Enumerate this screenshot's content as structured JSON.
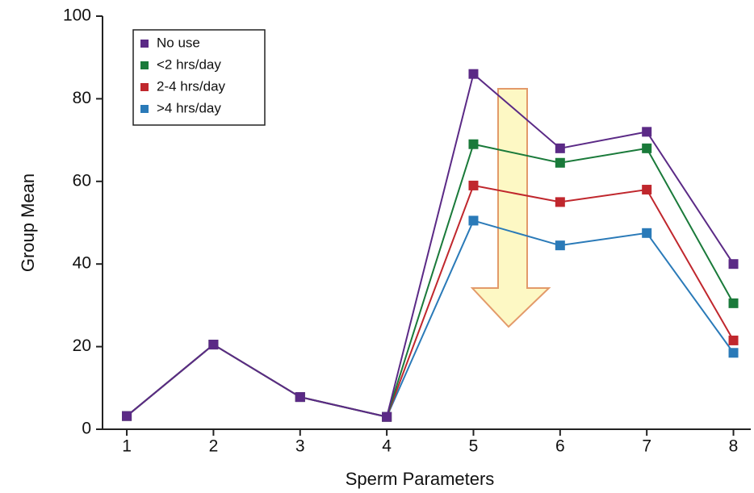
{
  "chart_data": {
    "type": "line",
    "x_label": "Sperm Parameters",
    "y_label": "Group Mean",
    "x": [
      1,
      2,
      3,
      4,
      5,
      6,
      7,
      8
    ],
    "series": [
      {
        "name": "No use",
        "color": "#5b2a86",
        "values": [
          3.2,
          20.5,
          7.8,
          3,
          86,
          68,
          72,
          40
        ]
      },
      {
        "name": "<2 hrs/day",
        "color": "#1a7a3a",
        "values": [
          3.2,
          20.5,
          7.8,
          3,
          69,
          64.5,
          68,
          30.5
        ]
      },
      {
        "name": "2-4 hrs/day",
        "color": "#c0272d",
        "values": [
          3.2,
          20.5,
          7.8,
          3,
          59,
          55,
          58,
          21.5
        ]
      },
      {
        "name": ">4 hrs/day",
        "color": "#2a7ab8",
        "values": [
          3.2,
          20.5,
          7.8,
          3,
          50.5,
          44.5,
          47.5,
          18.5
        ]
      }
    ],
    "xlim": [
      0.72,
      8.2
    ],
    "xticks": [
      1,
      2,
      3,
      4,
      5,
      6,
      7,
      8
    ],
    "ylim": [
      0,
      100
    ],
    "yticks": [
      0,
      20,
      40,
      60,
      80,
      100
    ],
    "legend": "upper left"
  }
}
